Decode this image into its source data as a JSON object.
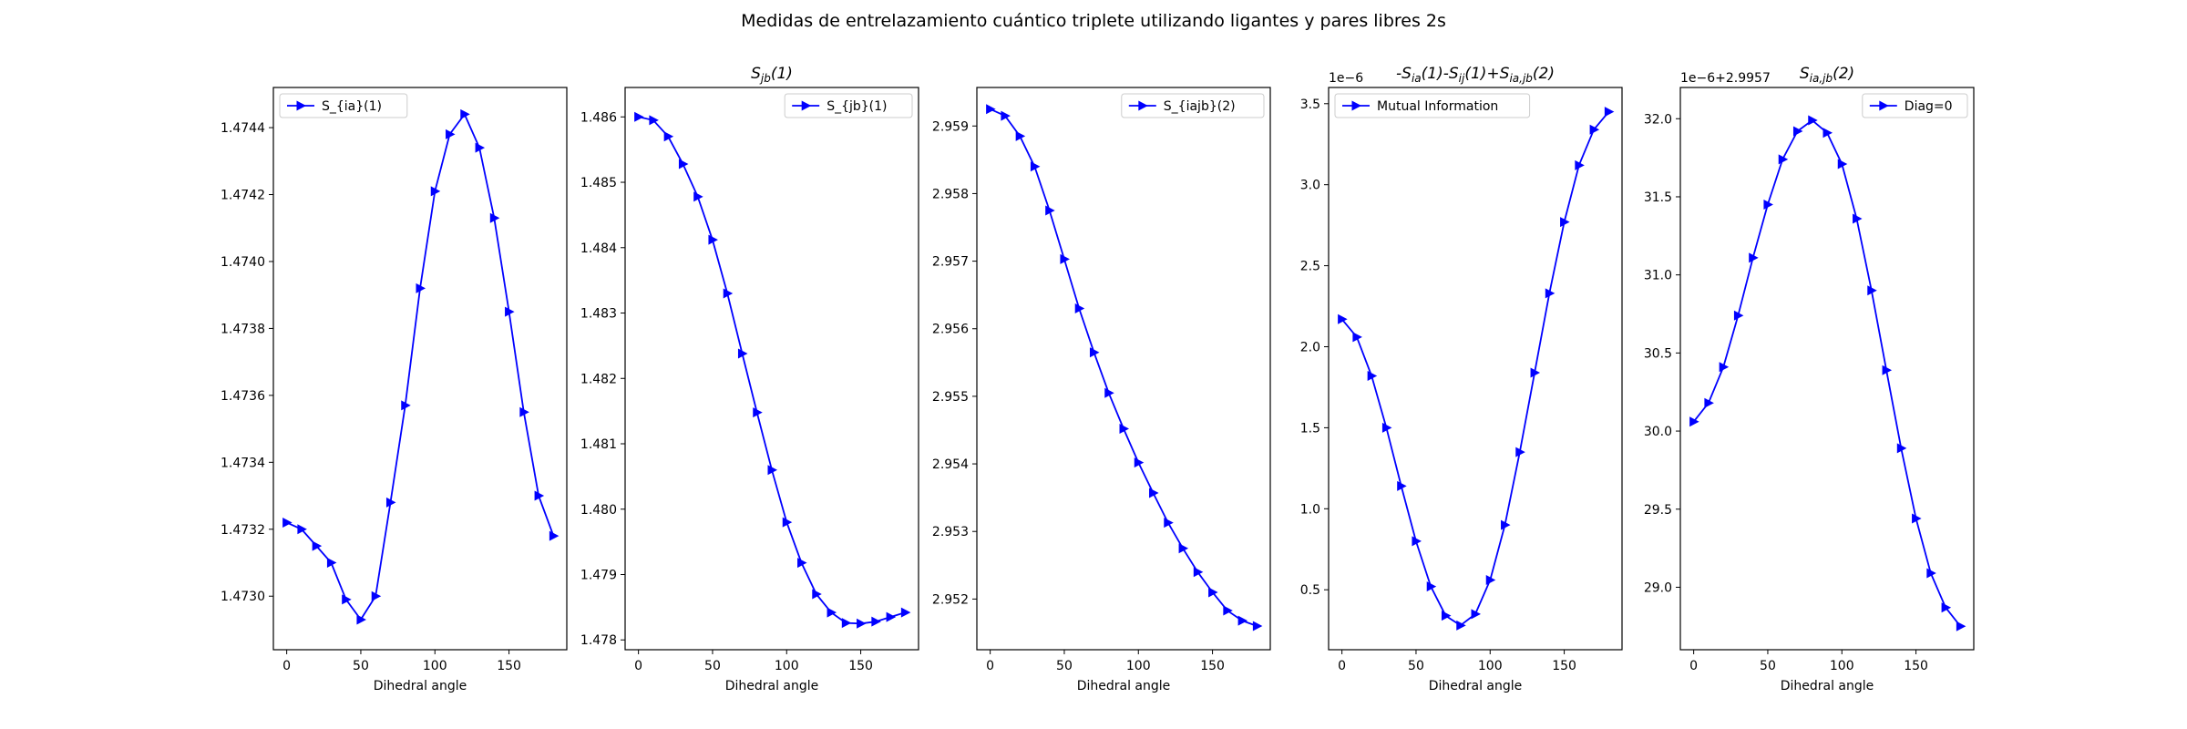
{
  "figure": {
    "suptitle": "Medidas de entrelazamiento cuántico triplete utilizando ligantes y pares libres 2s"
  },
  "chart_data": [
    {
      "type": "line",
      "title": "",
      "xlabel": "Dihedral angle",
      "ylabel": "",
      "offset_text": "",
      "legend_loc": "upper-left",
      "x_ticks": [
        0,
        50,
        100,
        150
      ],
      "y_ticks": [
        1.473,
        1.4732,
        1.4734,
        1.4736,
        1.4738,
        1.474,
        1.4742,
        1.4744
      ],
      "y_tick_decimals": 4,
      "xlim": [
        -9,
        189
      ],
      "ylim": [
        1.47284,
        1.47452
      ],
      "series": [
        {
          "name": "S_{ia}(1)",
          "color": "#0000ff",
          "marker": "triangle-right",
          "x": [
            0,
            10,
            20,
            30,
            40,
            50,
            60,
            70,
            80,
            90,
            100,
            110,
            120,
            130,
            140,
            150,
            160,
            170,
            180
          ],
          "y": [
            1.47322,
            1.4732,
            1.47315,
            1.4731,
            1.47299,
            1.47293,
            1.473,
            1.47328,
            1.47357,
            1.47392,
            1.47421,
            1.47438,
            1.47444,
            1.47434,
            1.47413,
            1.47385,
            1.47355,
            1.4733,
            1.47318
          ]
        }
      ]
    },
    {
      "type": "line",
      "title": "S_{jb}(1)",
      "xlabel": "Dihedral angle",
      "ylabel": "",
      "offset_text": "",
      "legend_loc": "upper-right",
      "x_ticks": [
        0,
        50,
        100,
        150
      ],
      "y_ticks": [
        1.478,
        1.479,
        1.48,
        1.481,
        1.482,
        1.483,
        1.484,
        1.485,
        1.486
      ],
      "y_tick_decimals": 3,
      "xlim": [
        -9,
        189
      ],
      "ylim": [
        1.47785,
        1.48645
      ],
      "series": [
        {
          "name": "S_{jb}(1)",
          "color": "#0000ff",
          "marker": "triangle-right",
          "x": [
            0,
            10,
            20,
            30,
            40,
            50,
            60,
            70,
            80,
            90,
            100,
            110,
            120,
            130,
            140,
            150,
            160,
            170,
            180
          ],
          "y": [
            1.486,
            1.48595,
            1.4857,
            1.48528,
            1.48478,
            1.48412,
            1.4833,
            1.48238,
            1.48148,
            1.4806,
            1.4798,
            1.47918,
            1.4787,
            1.47842,
            1.47826,
            1.47825,
            1.47828,
            1.47835,
            1.47842
          ]
        }
      ]
    },
    {
      "type": "line",
      "title": "",
      "xlabel": "Dihedral angle",
      "ylabel": "",
      "offset_text": "",
      "legend_loc": "upper-right",
      "x_ticks": [
        0,
        50,
        100,
        150
      ],
      "y_ticks": [
        2.952,
        2.953,
        2.954,
        2.955,
        2.956,
        2.957,
        2.958,
        2.959
      ],
      "y_tick_decimals": 3,
      "xlim": [
        -9,
        189
      ],
      "ylim": [
        2.95125,
        2.95957
      ],
      "series": [
        {
          "name": "S_{iajb}(2)",
          "color": "#0000ff",
          "marker": "triangle-right",
          "x": [
            0,
            10,
            20,
            30,
            40,
            50,
            60,
            70,
            80,
            90,
            100,
            110,
            120,
            130,
            140,
            150,
            160,
            170,
            180
          ],
          "y": [
            2.95925,
            2.95915,
            2.95885,
            2.9584,
            2.95775,
            2.95703,
            2.9563,
            2.95565,
            2.95505,
            2.95452,
            2.95402,
            2.95357,
            2.95313,
            2.95275,
            2.9524,
            2.9521,
            2.95183,
            2.95168,
            2.9516
          ]
        }
      ]
    },
    {
      "type": "line",
      "title": "-S_{ia}(1)-S_{ij}(1)+S_{ia,jb}(2)",
      "xlabel": "Dihedral angle",
      "ylabel": "",
      "offset_text": "1e−6",
      "legend_loc": "upper-left",
      "x_ticks": [
        0,
        50,
        100,
        150
      ],
      "y_ticks": [
        0.5,
        1.0,
        1.5,
        2.0,
        2.5,
        3.0,
        3.5
      ],
      "y_tick_decimals": 1,
      "xlim": [
        -9,
        189
      ],
      "ylim": [
        0.13,
        3.6
      ],
      "series": [
        {
          "name": "Mutual Information",
          "color": "#0000ff",
          "marker": "triangle-right",
          "x": [
            0,
            10,
            20,
            30,
            40,
            50,
            60,
            70,
            80,
            90,
            100,
            110,
            120,
            130,
            140,
            150,
            160,
            170,
            180
          ],
          "y": [
            2.17,
            2.06,
            1.82,
            1.5,
            1.14,
            0.8,
            0.52,
            0.34,
            0.28,
            0.35,
            0.56,
            0.9,
            1.35,
            1.84,
            2.33,
            2.77,
            3.12,
            3.34,
            3.45
          ]
        }
      ]
    },
    {
      "type": "line",
      "title": "S_{ia,jb}(2)",
      "xlabel": "Dihedral angle",
      "ylabel": "",
      "offset_text": "1e−6+2.9957",
      "legend_loc": "upper-right",
      "x_ticks": [
        0,
        50,
        100,
        150
      ],
      "y_ticks": [
        29.0,
        29.5,
        30.0,
        30.5,
        31.0,
        31.5,
        32.0
      ],
      "y_tick_decimals": 1,
      "xlim": [
        -9,
        189
      ],
      "ylim": [
        28.6,
        32.2
      ],
      "series": [
        {
          "name": "Diag=0",
          "color": "#0000ff",
          "marker": "triangle-right",
          "x": [
            0,
            10,
            20,
            30,
            40,
            50,
            60,
            70,
            80,
            90,
            100,
            110,
            120,
            130,
            140,
            150,
            160,
            170,
            180
          ],
          "y": [
            30.06,
            30.18,
            30.41,
            30.74,
            31.11,
            31.45,
            31.74,
            31.92,
            31.99,
            31.91,
            31.71,
            31.36,
            30.9,
            30.39,
            29.89,
            29.44,
            29.09,
            28.87,
            28.75
          ]
        }
      ]
    }
  ]
}
